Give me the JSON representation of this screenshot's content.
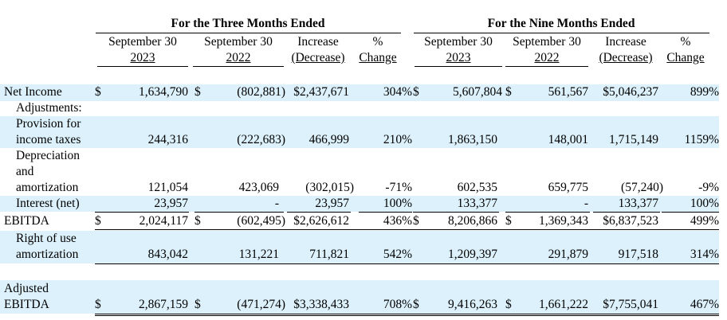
{
  "header": {
    "three_months_title": "For the Three Months Ended",
    "nine_months_title": "For the Nine Months Ended",
    "columns": [
      {
        "line1": "September 30",
        "line2": "2023"
      },
      {
        "line1": "September 30",
        "line2": "2022"
      },
      {
        "line1": "Increase",
        "line2": "(Decrease)"
      },
      {
        "line1": "%",
        "line2": "Change"
      },
      {
        "line1": "September 30",
        "line2": "2023"
      },
      {
        "line1": "September 30",
        "line2": "2022"
      },
      {
        "line1": "Increase",
        "line2": "(Decrease)"
      },
      {
        "line1": "%",
        "line2": "Change"
      }
    ]
  },
  "currency_symbol": "$",
  "rows": {
    "net_income": {
      "label": "Net Income",
      "values": [
        "1,634,790",
        "(802,881)",
        "$2,437,671",
        "304%",
        "5,607,804",
        "561,567",
        "$5,046,237",
        "899%"
      ]
    },
    "adjustments": {
      "label": "Adjustments:"
    },
    "provision": {
      "label_line1": "Provision for",
      "label_line2": "income taxes",
      "values": [
        "244,316",
        "(222,683)",
        "466,999",
        "210%",
        "1,863,150",
        "148,001",
        "1,715,149",
        "1159%"
      ]
    },
    "depreciation": {
      "label_line1": "Depreciation",
      "label_line2": "and",
      "label_line3": "amortization",
      "values": [
        "121,054",
        "423,069",
        "(302,015)",
        "-71%",
        "602,535",
        "659,775",
        "(57,240)",
        "-9%"
      ]
    },
    "interest": {
      "label": "Interest (net)",
      "values": [
        "23,957",
        "-",
        "23,957",
        "100%",
        "133,377",
        "-",
        "133,377",
        "100%"
      ]
    },
    "ebitda": {
      "label": "EBITDA",
      "values": [
        "2,024,117",
        "(602,495)",
        "$2,626,612",
        "436%",
        "8,206,866",
        "1,369,343",
        "$6,837,523",
        "499%"
      ]
    },
    "rou": {
      "label_line1": "Right of use",
      "label_line2": "amortization",
      "values": [
        "843,042",
        "131,221",
        "711,821",
        "542%",
        "1,209,397",
        "291,879",
        "917,518",
        "314%"
      ]
    },
    "adjusted_ebitda": {
      "label_line1": "Adjusted",
      "label_line2": "EBITDA",
      "values": [
        "2,867,159",
        "(471,274)",
        "$3,338,433",
        "708%",
        "9,416,263",
        "1,661,222",
        "$7,755,041",
        "467%"
      ]
    }
  }
}
